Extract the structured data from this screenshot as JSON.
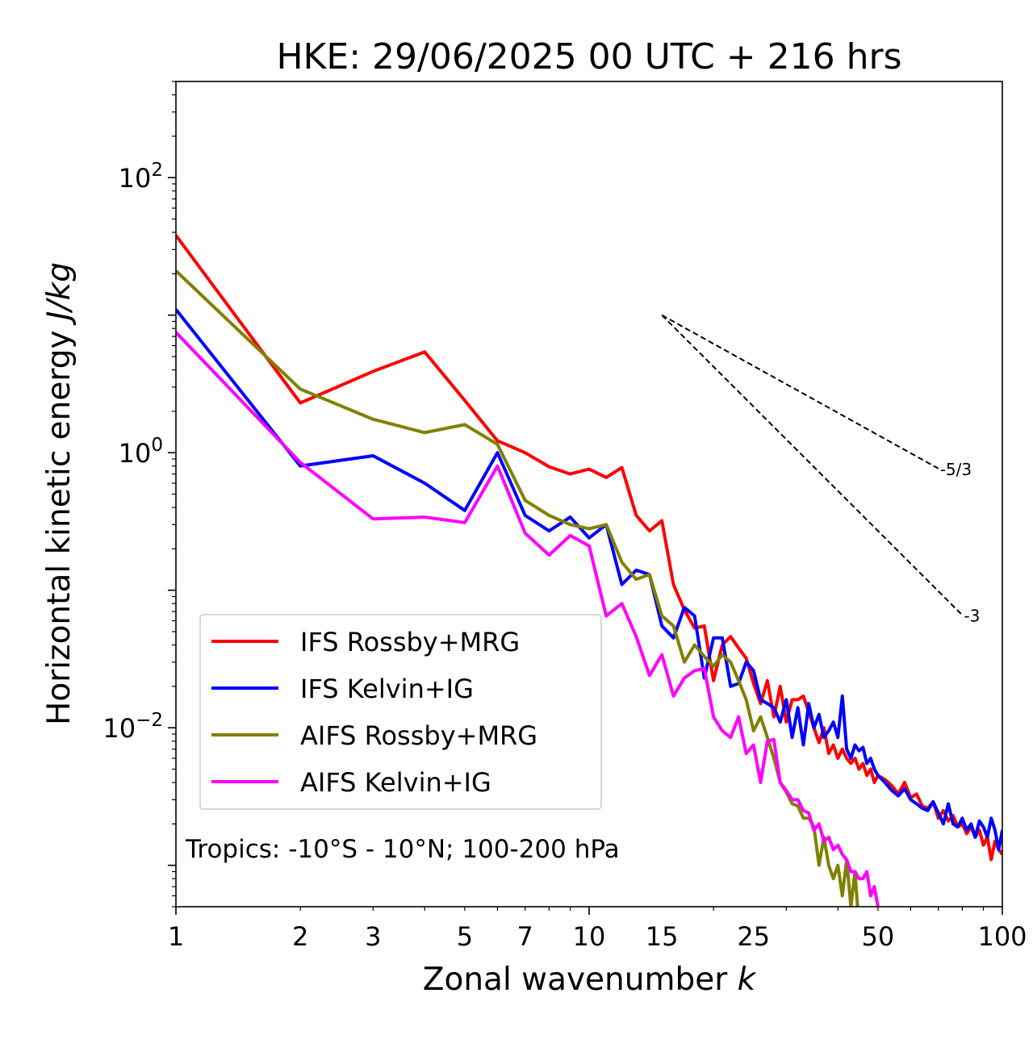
{
  "chart_data": {
    "type": "line",
    "title": "HKE: 29/06/2025 00 UTC + 216 hrs",
    "xlabel": "Zonal wavenumber ",
    "xlabel_italic": "k",
    "ylabel": "Horizontal kinetic energy ",
    "ylabel_italic": "J/kg",
    "xscale": "log",
    "yscale": "log",
    "xlim": [
      1,
      100
    ],
    "ylim": [
      0.0005,
      500
    ],
    "x_ticks": [
      1,
      2,
      3,
      5,
      7,
      10,
      15,
      25,
      50,
      100
    ],
    "x_tick_labels": [
      "1",
      "2",
      "3",
      "5",
      "7",
      "10",
      "15",
      "25",
      "50",
      "100"
    ],
    "y_ticks": [
      100,
      1,
      0.01
    ],
    "y_tick_labels": [
      {
        "base": "10",
        "exp": "2"
      },
      {
        "base": "10",
        "exp": "0"
      },
      {
        "base": "10",
        "exp": "−2"
      }
    ],
    "grid": false,
    "legend_position": "lower-left",
    "annotation": "Tropics: -10°S - 10°N; 100-200 hPa",
    "reference_slopes": [
      {
        "label": "-5/3",
        "slope": -1.6667,
        "x0": 15,
        "x1": 70,
        "y0": 10
      },
      {
        "label": "-3",
        "slope": -3,
        "x0": 15,
        "x1": 80,
        "y0": 10
      }
    ],
    "series": [
      {
        "name": "IFS Rossby+MRG",
        "color": "#ff0000",
        "x": [
          1,
          2,
          3,
          4,
          5,
          6,
          7,
          8,
          9,
          10,
          11,
          12,
          13,
          14,
          15,
          16,
          17,
          18,
          19,
          20,
          21,
          22,
          23,
          24,
          25,
          26,
          27,
          28,
          29,
          30,
          31,
          32,
          33,
          34,
          35,
          36,
          37,
          38,
          39,
          40,
          41,
          42,
          43,
          44,
          45,
          46,
          47,
          48,
          49,
          50,
          52,
          54,
          56,
          58,
          60,
          62,
          64,
          66,
          68,
          70,
          72,
          74,
          76,
          78,
          80,
          82,
          84,
          86,
          88,
          90,
          92,
          94,
          96,
          98,
          100
        ],
        "y": [
          38,
          2.3,
          3.9,
          5.4,
          2.4,
          1.22,
          1.0,
          0.79,
          0.7,
          0.76,
          0.66,
          0.78,
          0.35,
          0.27,
          0.32,
          0.11,
          0.072,
          0.053,
          0.055,
          0.022,
          0.04,
          0.046,
          0.038,
          0.032,
          0.021,
          0.015,
          0.022,
          0.012,
          0.02,
          0.011,
          0.016,
          0.016,
          0.017,
          0.013,
          0.01,
          0.0078,
          0.01,
          0.0065,
          0.0075,
          0.006,
          0.007,
          0.006,
          0.0055,
          0.006,
          0.005,
          0.0055,
          0.0045,
          0.005,
          0.004,
          0.0045,
          0.0042,
          0.0038,
          0.0033,
          0.004,
          0.0031,
          0.0033,
          0.0027,
          0.0026,
          0.0029,
          0.0022,
          0.0025,
          0.0021,
          0.0023,
          0.0019,
          0.002,
          0.0017,
          0.0019,
          0.0016,
          0.0018,
          0.0014,
          0.0016,
          0.0011,
          0.0015,
          0.0013,
          0.0012
        ]
      },
      {
        "name": "IFS Kelvin+IG",
        "color": "#0000ff",
        "x": [
          1,
          2,
          3,
          4,
          5,
          6,
          7,
          8,
          9,
          10,
          11,
          12,
          13,
          14,
          15,
          16,
          17,
          18,
          19,
          20,
          21,
          22,
          23,
          24,
          25,
          26,
          27,
          28,
          29,
          30,
          31,
          32,
          33,
          34,
          35,
          36,
          37,
          38,
          39,
          40,
          41,
          42,
          43,
          44,
          45,
          46,
          47,
          48,
          49,
          50,
          52,
          54,
          56,
          58,
          60,
          62,
          64,
          66,
          68,
          70,
          72,
          74,
          76,
          78,
          80,
          82,
          84,
          86,
          88,
          90,
          92,
          94,
          96,
          98,
          100
        ],
        "y": [
          11,
          0.8,
          0.95,
          0.6,
          0.38,
          1.0,
          0.35,
          0.27,
          0.34,
          0.24,
          0.3,
          0.11,
          0.14,
          0.13,
          0.055,
          0.045,
          0.075,
          0.065,
          0.023,
          0.045,
          0.045,
          0.02,
          0.021,
          0.03,
          0.026,
          0.016,
          0.015,
          0.014,
          0.011,
          0.016,
          0.0085,
          0.014,
          0.0075,
          0.015,
          0.01,
          0.0125,
          0.0085,
          0.0095,
          0.011,
          0.0085,
          0.017,
          0.007,
          0.006,
          0.0075,
          0.0068,
          0.0072,
          0.0055,
          0.006,
          0.005,
          0.0045,
          0.004,
          0.0035,
          0.0032,
          0.0036,
          0.003,
          0.0028,
          0.0026,
          0.0025,
          0.0029,
          0.0024,
          0.002,
          0.0028,
          0.002,
          0.0019,
          0.0022,
          0.0018,
          0.002,
          0.0016,
          0.0021,
          0.0019,
          0.0016,
          0.0022,
          0.0018,
          0.0013,
          0.0018
        ]
      },
      {
        "name": "AIFS Rossby+MRG",
        "color": "#808000",
        "x": [
          1,
          2,
          3,
          4,
          5,
          6,
          7,
          8,
          9,
          10,
          11,
          12,
          13,
          14,
          15,
          16,
          17,
          18,
          19,
          20,
          21,
          22,
          23,
          24,
          25,
          26,
          27,
          28,
          29,
          30,
          31,
          32,
          33,
          34,
          35,
          36,
          37,
          38,
          39,
          40,
          41,
          42,
          43,
          44,
          45,
          46,
          47,
          48,
          49,
          50
        ],
        "y": [
          21,
          2.9,
          1.75,
          1.4,
          1.6,
          1.15,
          0.45,
          0.35,
          0.3,
          0.28,
          0.3,
          0.16,
          0.12,
          0.13,
          0.065,
          0.055,
          0.03,
          0.04,
          0.033,
          0.028,
          0.034,
          0.03,
          0.022,
          0.016,
          0.0095,
          0.012,
          0.0085,
          0.006,
          0.004,
          0.0034,
          0.0028,
          0.0027,
          0.0022,
          0.0022,
          0.0019,
          0.001,
          0.0016,
          0.001,
          0.0008,
          0.001,
          0.0006,
          0.0011,
          0.0005,
          0.0009,
          0.00035,
          0.0004,
          0.0004,
          0.00035,
          0.0003,
          0.0003
        ]
      },
      {
        "name": "AIFS Kelvin+IG",
        "color": "#ff00ff",
        "x": [
          1,
          2,
          3,
          4,
          5,
          6,
          7,
          8,
          9,
          10,
          11,
          12,
          13,
          14,
          15,
          16,
          17,
          18,
          19,
          20,
          21,
          22,
          23,
          24,
          25,
          26,
          27,
          28,
          29,
          30,
          31,
          32,
          33,
          34,
          35,
          36,
          37,
          38,
          39,
          40,
          41,
          42,
          43,
          44,
          45,
          46,
          47,
          48,
          49,
          50
        ],
        "y": [
          7.5,
          0.85,
          0.33,
          0.34,
          0.31,
          0.8,
          0.26,
          0.18,
          0.25,
          0.21,
          0.065,
          0.08,
          0.046,
          0.024,
          0.034,
          0.017,
          0.023,
          0.026,
          0.027,
          0.012,
          0.0095,
          0.0085,
          0.012,
          0.0065,
          0.0075,
          0.004,
          0.008,
          0.0082,
          0.004,
          0.0035,
          0.003,
          0.003,
          0.0025,
          0.0024,
          0.0018,
          0.002,
          0.0015,
          0.0016,
          0.0013,
          0.0014,
          0.0012,
          0.0011,
          0.0009,
          0.0009,
          0.0008,
          0.0008,
          0.0009,
          0.0006,
          0.0007,
          0.0005
        ]
      }
    ]
  }
}
